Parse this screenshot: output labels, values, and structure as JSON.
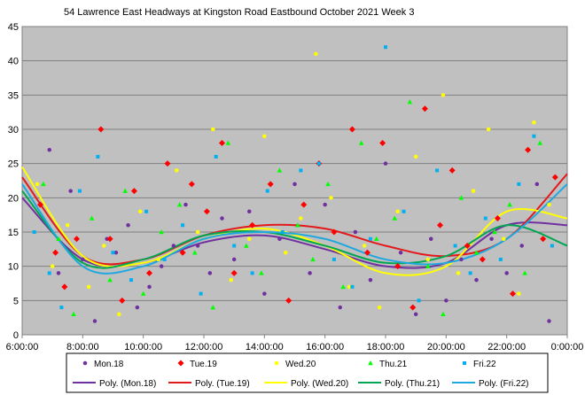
{
  "chart_data": {
    "type": "scatter",
    "title": "54 Lawrence East Headways at Kingston Road Eastbound October 2021  Week 3",
    "x_tick_labels": [
      "6:00:00",
      "8:00:00",
      "10:00:00",
      "12:00:00",
      "14:00:00",
      "16:00:00",
      "18:00:00",
      "20:00:00",
      "22:00:00",
      "0:00:00"
    ],
    "x_range_hours": [
      6,
      24
    ],
    "ylim": [
      0,
      45
    ],
    "y_ticks": [
      0,
      5,
      10,
      15,
      20,
      25,
      30,
      35,
      40,
      45
    ],
    "grid": "horizontal",
    "plot_background": "#c0c0c0",
    "legend_position": "bottom",
    "series": [
      {
        "name": "Mon.18",
        "marker": "circle",
        "color": "#7030a0",
        "x": [
          6.9,
          7.2,
          7.6,
          8.0,
          8.4,
          8.8,
          9.1,
          9.5,
          9.8,
          10.2,
          10.6,
          11.0,
          11.4,
          11.8,
          12.2,
          12.6,
          13.0,
          13.5,
          14.0,
          14.5,
          15.0,
          15.5,
          16.0,
          16.5,
          17.0,
          17.5,
          18.0,
          18.5,
          19.0,
          19.5,
          20.0,
          20.5,
          21.0,
          21.5,
          22.0,
          22.5,
          23.0,
          23.4
        ],
        "y": [
          27,
          9,
          21,
          11,
          2,
          14,
          12,
          16,
          4,
          7,
          10,
          13,
          19,
          13,
          9,
          17,
          11,
          18,
          6,
          14,
          22,
          9,
          19,
          4,
          15,
          8,
          25,
          12,
          3,
          14,
          5,
          11,
          8,
          14,
          9,
          13,
          22,
          2
        ]
      },
      {
        "name": "Tue.19",
        "marker": "diamond",
        "color": "#ff0000",
        "x": [
          6.6,
          7.1,
          7.4,
          7.8,
          8.6,
          8.9,
          9.3,
          9.7,
          10.2,
          10.8,
          11.3,
          11.6,
          12.1,
          12.6,
          13.0,
          13.6,
          14.2,
          14.8,
          15.3,
          15.8,
          16.3,
          16.9,
          17.4,
          17.9,
          18.4,
          18.9,
          19.3,
          19.8,
          20.2,
          20.7,
          21.2,
          21.7,
          22.2,
          22.7,
          23.2,
          23.6
        ],
        "y": [
          19,
          12,
          7,
          14,
          30,
          14,
          5,
          21,
          9,
          25,
          12,
          22,
          18,
          28,
          9,
          16,
          22,
          5,
          19,
          25,
          15,
          30,
          12,
          28,
          10,
          4,
          33,
          16,
          24,
          13,
          11,
          17,
          6,
          27,
          14,
          23
        ]
      },
      {
        "name": "Wed.20",
        "marker": "circle",
        "color": "#ffff00",
        "x": [
          6.5,
          7.0,
          7.5,
          8.2,
          8.7,
          9.2,
          9.9,
          10.5,
          11.1,
          11.8,
          12.3,
          12.9,
          13.5,
          14.0,
          14.7,
          15.2,
          15.7,
          16.2,
          16.8,
          17.3,
          17.8,
          18.4,
          19.0,
          19.4,
          19.9,
          20.4,
          20.9,
          21.4,
          21.9,
          22.4,
          22.9,
          23.4
        ],
        "y": [
          22,
          10,
          16,
          7,
          13,
          3,
          18,
          11,
          24,
          15,
          30,
          8,
          14,
          29,
          12,
          17,
          41,
          20,
          7,
          13,
          4,
          18,
          26,
          11,
          35,
          9,
          21,
          30,
          14,
          6,
          31,
          19
        ]
      },
      {
        "name": "Thu.21",
        "marker": "triangle",
        "color": "#00ff00",
        "x": [
          6.7,
          7.2,
          7.7,
          8.3,
          8.9,
          9.4,
          10.0,
          10.6,
          11.2,
          11.7,
          12.3,
          12.8,
          13.4,
          13.9,
          14.5,
          15.1,
          15.6,
          16.1,
          16.6,
          17.2,
          17.7,
          18.3,
          18.8,
          19.4,
          19.9,
          20.5,
          21.0,
          21.6,
          22.1,
          22.6,
          23.1
        ],
        "y": [
          22,
          14,
          3,
          17,
          8,
          21,
          6,
          15,
          19,
          12,
          4,
          28,
          13,
          9,
          24,
          16,
          11,
          22,
          7,
          28,
          14,
          17,
          34,
          10,
          3,
          20,
          12,
          15,
          19,
          9,
          28
        ]
      },
      {
        "name": "Fri.22",
        "marker": "square",
        "color": "#00b0f0",
        "x": [
          6.4,
          6.9,
          7.3,
          7.9,
          8.5,
          9.0,
          9.6,
          10.1,
          10.7,
          11.3,
          11.9,
          12.4,
          13.0,
          13.6,
          14.1,
          14.6,
          15.2,
          15.8,
          16.3,
          16.9,
          17.5,
          18.0,
          18.6,
          19.1,
          19.7,
          20.3,
          20.8,
          21.3,
          21.8,
          22.4,
          22.9,
          23.5
        ],
        "y": [
          15,
          9,
          4,
          21,
          26,
          12,
          8,
          18,
          11,
          16,
          6,
          26,
          13,
          9,
          21,
          15,
          24,
          25,
          11,
          7,
          14,
          42,
          18,
          5,
          24,
          13,
          9,
          17,
          11,
          22,
          29,
          13
        ]
      }
    ],
    "trendlines": [
      {
        "name": "Poly. (Mon.18)",
        "color": "#7030a0",
        "x": [
          6,
          8,
          10,
          12,
          14,
          16,
          18,
          20,
          22,
          24
        ],
        "y": [
          20,
          11,
          10.5,
          13.5,
          14.5,
          12.5,
          10,
          10.5,
          16,
          16
        ]
      },
      {
        "name": "Poly. (Tue.19)",
        "color": "#e31a1c",
        "x": [
          6,
          8,
          10,
          12,
          14,
          16,
          18,
          20,
          22,
          24
        ],
        "y": [
          23,
          11.5,
          11,
          14.5,
          16,
          15.5,
          13,
          11.5,
          14,
          23.5
        ]
      },
      {
        "name": "Poly. (Wed.20)",
        "color": "#ffff00",
        "x": [
          6,
          8,
          10,
          12,
          14,
          16,
          18,
          20,
          22,
          24
        ],
        "y": [
          24.5,
          11.5,
          10.5,
          14,
          15.5,
          13,
          9,
          10,
          18,
          17
        ]
      },
      {
        "name": "Poly. (Thu.21)",
        "color": "#00a651",
        "x": [
          6,
          8,
          10,
          12,
          14,
          16,
          18,
          20,
          22,
          24
        ],
        "y": [
          21,
          10.5,
          11,
          14.5,
          15,
          13,
          10.5,
          11.5,
          16,
          13
        ]
      },
      {
        "name": "Poly. (Fri.22)",
        "color": "#1fa8e0",
        "x": [
          6,
          8,
          10,
          12,
          14,
          16,
          18,
          20,
          22,
          24
        ],
        "y": [
          22,
          10,
          10,
          14,
          15,
          14,
          11,
          10.5,
          14,
          22
        ]
      }
    ]
  }
}
